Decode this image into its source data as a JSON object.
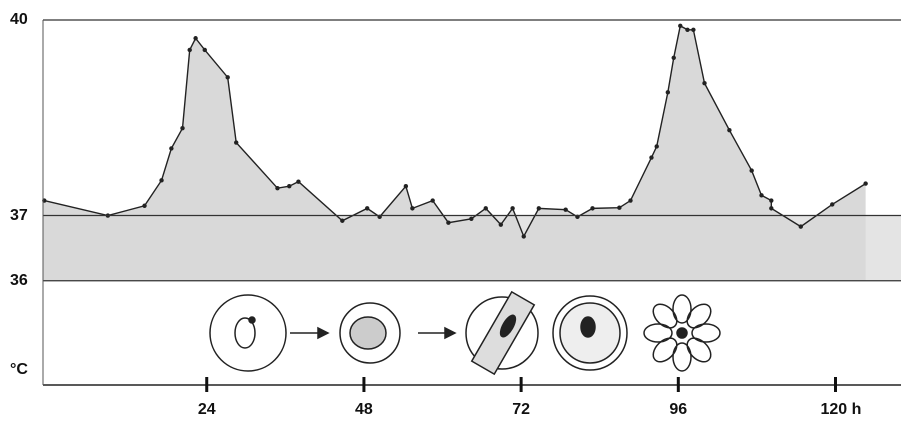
{
  "chart_data": {
    "type": "line",
    "y_axis_label": "°C",
    "x": [
      -0.8,
      8.9,
      14.5,
      17.1,
      18.6,
      20.3,
      21.4,
      22.3,
      23.7,
      27.2,
      28.5,
      34.8,
      36.6,
      38.0,
      44.7,
      48.5,
      50.4,
      54.4,
      55.4,
      58.5,
      60.9,
      64.4,
      66.6,
      68.9,
      70.7,
      72.4,
      74.7,
      78.8,
      80.6,
      82.9,
      87.0,
      88.7,
      91.9,
      92.7,
      94.4,
      95.3,
      96.3,
      97.4,
      98.3,
      100.0,
      103.8,
      107.2,
      108.7,
      110.2,
      110.2,
      114.7,
      119.5,
      124.6
    ],
    "series": [
      {
        "color": "#222222",
        "fill": "#d9d9d9",
        "values": [
          37.23,
          37.0,
          37.15,
          37.54,
          38.03,
          38.34,
          39.54,
          39.72,
          39.54,
          39.12,
          38.12,
          37.42,
          37.45,
          37.52,
          36.92,
          37.11,
          36.98,
          37.45,
          37.11,
          37.23,
          36.89,
          36.95,
          37.11,
          36.86,
          37.11,
          36.68,
          37.11,
          37.09,
          36.98,
          37.11,
          37.12,
          37.23,
          37.89,
          38.06,
          38.89,
          39.42,
          39.91,
          39.85,
          39.85,
          39.03,
          38.31,
          37.69,
          37.31,
          37.23,
          37.11,
          36.83,
          37.17,
          37.49
        ]
      }
    ],
    "xlim": [
      -1,
      130
    ],
    "xticks": [
      24,
      48,
      72,
      96,
      {
        "value": 120,
        "label": "120 h"
      }
    ],
    "ylim": [
      34.4,
      40
    ],
    "yticks": [
      36,
      37,
      40
    ],
    "grid": true,
    "band_fill": "#e4e4e4"
  }
}
